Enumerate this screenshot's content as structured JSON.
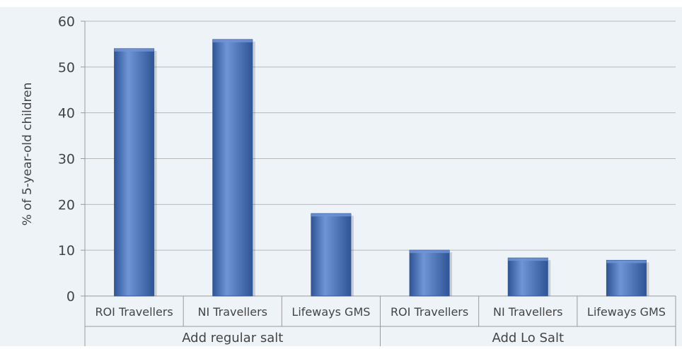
{
  "chart_data": {
    "type": "bar",
    "title": "",
    "xlabel": "",
    "ylabel": "% of 5-year-old children",
    "ylim": [
      0,
      60
    ],
    "yticks": [
      0,
      10,
      20,
      30,
      40,
      50,
      60
    ],
    "grid": true,
    "groups": [
      {
        "label": "Add regular salt",
        "categories": [
          "ROI Travellers",
          "NI Travellers",
          "Lifeways GMS"
        ],
        "values": [
          54,
          56,
          18
        ]
      },
      {
        "label": "Add Lo Salt",
        "categories": [
          "ROI Travellers",
          "NI Travellers",
          "Lifeways GMS"
        ],
        "values": [
          10,
          8.3,
          7.8
        ]
      }
    ],
    "colors": {
      "bar": "#4a74be",
      "bar_dark": "#2f5597",
      "bar_light": "#6f95d6",
      "plot_background": "#eef3f8",
      "grid": "#b8b8b8",
      "axis": "#9a9a9a"
    }
  }
}
